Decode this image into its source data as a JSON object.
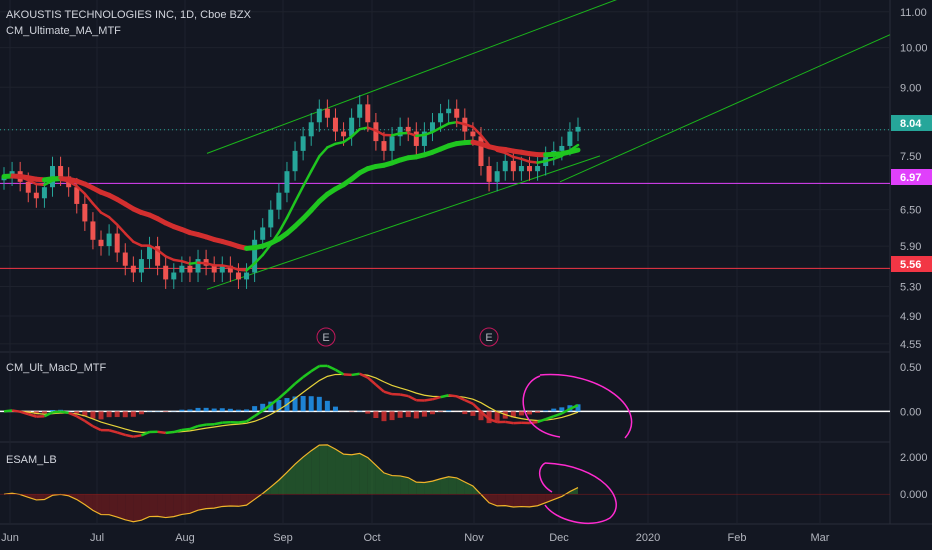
{
  "header": {
    "symbol_line": "AKOUSTIS TECHNOLOGIES INC, 1D, Cboe BZX",
    "ma_indicator": "CM_Ultimate_MA_MTF"
  },
  "panes": {
    "macd": {
      "name": "CM_Ult_MacD_MTF"
    },
    "esam": {
      "name": "ESAM_LB"
    }
  },
  "earnings_markers": [
    "E",
    "E"
  ],
  "price_tags": {
    "current": {
      "label": "8.04",
      "color": "#26a69a"
    },
    "magenta": {
      "label": "6.97",
      "color": "#e040fb"
    },
    "red": {
      "label": "5.56",
      "color": "#f23645"
    }
  },
  "colors": {
    "background": "#131722",
    "up_candle": "#26a69a",
    "down_candle": "#ef5350",
    "ma_green": "#1fc61f",
    "ma_red": "#d32f2f",
    "channel": "#1bb51b",
    "annotation": "#ff2bd0",
    "signal_yellow": "#e6d33a"
  },
  "chart_data": [
    {
      "type": "candlestick",
      "title": "AKOUSTIS TECHNOLOGIES INC, 1D, Cboe BZX",
      "y_axis_ticks": [
        "11.00",
        "10.00",
        "9.00",
        "8.04",
        "7.50",
        "6.97",
        "6.50",
        "5.90",
        "5.56",
        "5.30",
        "4.90",
        "4.55"
      ],
      "x_axis_ticks": [
        "Jun",
        "Jul",
        "Aug",
        "Sep",
        "Oct",
        "Nov",
        "Dec",
        "2020",
        "Feb",
        "Mar"
      ],
      "scale": "log",
      "ylim": [
        4.5,
        11.2
      ],
      "horizontal_lines": [
        {
          "value": 8.04,
          "color": "#26a69a",
          "style": "dotted"
        },
        {
          "value": 6.97,
          "color": "#e040fb",
          "style": "solid"
        },
        {
          "value": 5.56,
          "color": "#f23645",
          "style": "solid"
        }
      ],
      "close_series": [
        7.1,
        7.2,
        7.0,
        6.8,
        6.7,
        6.9,
        7.3,
        7.1,
        6.9,
        6.6,
        6.3,
        6.0,
        5.9,
        6.1,
        5.8,
        5.6,
        5.5,
        5.7,
        5.9,
        5.6,
        5.4,
        5.5,
        5.6,
        5.5,
        5.7,
        5.6,
        5.5,
        5.6,
        5.5,
        5.4,
        5.5,
        6.0,
        6.2,
        6.5,
        6.8,
        7.2,
        7.6,
        7.9,
        8.2,
        8.5,
        8.3,
        8.0,
        7.9,
        8.3,
        8.6,
        8.2,
        7.8,
        7.6,
        7.9,
        8.1,
        8.0,
        7.7,
        8.0,
        8.2,
        8.4,
        8.5,
        8.3,
        8.0,
        7.9,
        7.3,
        7.0,
        7.2,
        7.4,
        7.2,
        7.3,
        7.2,
        7.3,
        7.5,
        7.6,
        7.7,
        8.0,
        8.1
      ]
    },
    {
      "type": "line",
      "title": "CM_Ult_MacD_MTF",
      "y_axis_ticks": [
        "0.50",
        "0.00"
      ],
      "ylim": [
        -0.3,
        0.6
      ]
    },
    {
      "type": "area",
      "title": "ESAM_LB",
      "y_axis_ticks": [
        "2.000",
        "0.000"
      ],
      "ylim": [
        -1.5,
        2.6
      ]
    }
  ]
}
